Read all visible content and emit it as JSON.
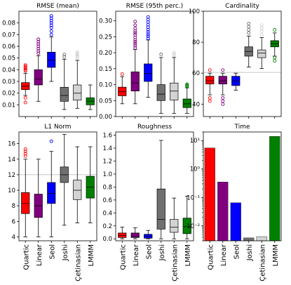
{
  "chart_data": [
    {
      "type": "box",
      "title": "RMSE (mean)",
      "ylim": [
        0,
        0.09
      ],
      "yscale": "linear",
      "yticks": [
        0.01,
        0.02,
        0.03,
        0.04,
        0.05,
        0.06,
        0.07,
        0.08
      ],
      "yticklabels": [
        "0.01",
        "0.02",
        "0.03",
        "0.04",
        "0.05",
        "0.06",
        "0.07",
        "0.08"
      ],
      "categories": [
        "Quartic",
        "Linear",
        "Seol",
        "Joshi",
        "Çetinasian",
        "LMMM"
      ],
      "show_xticklabels": false,
      "boxes": [
        {
          "min": 0.018,
          "q1": 0.023,
          "median": 0.026,
          "q3": 0.029,
          "max": 0.037,
          "outliers": [
            0.012,
            0.016,
            0.039,
            0.04,
            0.041,
            0.042,
            0.043,
            0.044
          ]
        },
        {
          "min": 0.013,
          "q1": 0.027,
          "median": 0.032,
          "q3": 0.04,
          "max": 0.052,
          "outliers": [
            0.054,
            0.056,
            0.058,
            0.06,
            0.062,
            0.064,
            0.066
          ]
        },
        {
          "min": 0.03,
          "q1": 0.042,
          "median": 0.048,
          "q3": 0.055,
          "max": 0.068,
          "outliers": [
            0.07,
            0.073,
            0.076,
            0.078,
            0.08,
            0.082,
            0.084,
            0.086
          ]
        },
        {
          "min": 0.006,
          "q1": 0.013,
          "median": 0.018,
          "q3": 0.025,
          "max": 0.049,
          "outliers": [
            0.051,
            0.053
          ]
        },
        {
          "min": 0.007,
          "q1": 0.014,
          "median": 0.02,
          "q3": 0.027,
          "max": 0.048,
          "outliers": [
            0.05,
            0.051,
            0.052,
            0.053,
            0.054,
            0.055
          ]
        },
        {
          "min": 0.006,
          "q1": 0.01,
          "median": 0.013,
          "q3": 0.016,
          "max": 0.027,
          "outliers": []
        }
      ]
    },
    {
      "type": "box",
      "title": "RMSE (95th perc.)",
      "ylim": [
        0,
        0.33
      ],
      "yscale": "linear",
      "yticks": [
        0.0,
        0.05,
        0.1,
        0.15,
        0.2,
        0.25,
        0.3
      ],
      "yticklabels": [
        "0.00",
        "0.05",
        "0.10",
        "0.15",
        "0.20",
        "0.25",
        "0.30"
      ],
      "categories": [
        "Quartic",
        "Linear",
        "Seol",
        "Joshi",
        "Çetinasian",
        "LMMM"
      ],
      "show_xticklabels": false,
      "boxes": [
        {
          "min": 0.04,
          "q1": 0.065,
          "median": 0.078,
          "q3": 0.092,
          "max": 0.125,
          "outliers": [
            0.133
          ]
        },
        {
          "min": 0.04,
          "q1": 0.08,
          "median": 0.105,
          "q3": 0.14,
          "max": 0.21,
          "outliers": [
            0.215,
            0.222,
            0.228,
            0.234,
            0.24,
            0.248,
            0.256,
            0.262,
            0.268,
            0.276,
            0.286,
            0.298
          ]
        },
        {
          "min": 0.06,
          "q1": 0.11,
          "median": 0.135,
          "q3": 0.165,
          "max": 0.24,
          "outliers": [
            0.245,
            0.252,
            0.258,
            0.265,
            0.272,
            0.28,
            0.288,
            0.296,
            0.304,
            0.312
          ]
        },
        {
          "min": 0.01,
          "q1": 0.05,
          "median": 0.07,
          "q3": 0.1,
          "max": 0.185,
          "outliers": [
            0.195
          ]
        },
        {
          "min": 0.01,
          "q1": 0.052,
          "median": 0.08,
          "q3": 0.105,
          "max": 0.185,
          "outliers": [
            0.192,
            0.196,
            0.2
          ]
        },
        {
          "min": 0.01,
          "q1": 0.028,
          "median": 0.04,
          "q3": 0.055,
          "max": 0.09,
          "outliers": [
            0.093,
            0.096,
            0.099,
            0.101
          ]
        }
      ]
    },
    {
      "type": "box",
      "title": "Cardinality",
      "ylim": [
        32,
        100
      ],
      "yscale": "linear",
      "yticks": [
        40,
        60,
        80,
        100
      ],
      "yticklabels": [
        "40",
        "60",
        "80",
        "100"
      ],
      "hline": 60.5,
      "categories": [
        "Quartic",
        "Linear",
        "Seol",
        "Joshi",
        "Çetinasian",
        "LMMM"
      ],
      "show_xticklabels": false,
      "boxes": [
        {
          "min": 46,
          "q1": 53,
          "median": 55,
          "q3": 58,
          "max": 60,
          "outliers": [
            42,
            44,
            62
          ]
        },
        {
          "min": 46,
          "q1": 53,
          "median": 55,
          "q3": 58,
          "max": 60,
          "outliers": [
            40,
            42,
            44,
            62
          ]
        },
        {
          "min": 49,
          "q1": 52,
          "median": 55,
          "q3": 58,
          "max": 60,
          "outliers": []
        },
        {
          "min": 64,
          "q1": 71,
          "median": 74,
          "q3": 77,
          "max": 84,
          "outliers": [
            86,
            88,
            90,
            92
          ]
        },
        {
          "min": 63,
          "q1": 70,
          "median": 73,
          "q3": 75,
          "max": 83,
          "outliers": [
            85,
            87,
            89,
            91
          ]
        },
        {
          "min": 71,
          "q1": 77,
          "median": 79,
          "q3": 81,
          "max": 86,
          "outliers": [
            68,
            70,
            88
          ]
        }
      ]
    },
    {
      "type": "box",
      "title": "L1 Norm",
      "ylim": [
        3.5,
        17.5
      ],
      "yscale": "linear",
      "yticks": [
        4,
        6,
        8,
        10,
        12,
        14,
        16
      ],
      "yticklabels": [
        "4",
        "6",
        "8",
        "10",
        "12",
        "14",
        "16"
      ],
      "hline": 12,
      "categories": [
        "Quartic",
        "Linear",
        "Seol",
        "Joshi",
        "Çetinasian",
        "LMMM"
      ],
      "show_xticklabels": true,
      "boxes": [
        {
          "min": 4.0,
          "q1": 7.0,
          "median": 8.3,
          "q3": 9.7,
          "max": 14.0,
          "outliers": [
            14.4,
            14.7,
            15.0,
            15.3
          ]
        },
        {
          "min": 4.0,
          "q1": 6.5,
          "median": 8.0,
          "q3": 9.5,
          "max": 14.0,
          "outliers": []
        },
        {
          "min": 4.0,
          "q1": 8.3,
          "median": 9.6,
          "q3": 11.0,
          "max": 15.0,
          "outliers": [
            16.3
          ]
        },
        {
          "min": 5.5,
          "q1": 11.0,
          "median": 12.0,
          "q3": 13.0,
          "max": 17.2,
          "outliers": []
        },
        {
          "min": 5.8,
          "q1": 8.8,
          "median": 10.0,
          "q3": 11.3,
          "max": 15.6,
          "outliers": []
        },
        {
          "min": 5.8,
          "q1": 9.0,
          "median": 10.4,
          "q3": 11.8,
          "max": 15.6,
          "outliers": []
        }
      ]
    },
    {
      "type": "box",
      "title": "Roughness",
      "ylim": [
        -0.03,
        1.65
      ],
      "yscale": "linear",
      "yticks": [
        0.0,
        0.2,
        0.4,
        0.6,
        0.8,
        1.0,
        1.2,
        1.4,
        1.6
      ],
      "yticklabels": [
        "0.0",
        "0.2",
        "0.4",
        "0.6",
        "0.8",
        "1.0",
        "1.2",
        "1.4",
        "1.6"
      ],
      "categories": [
        "Quartic",
        "Linear",
        "Seol",
        "Joshi",
        "Çetinasian",
        "LMMM"
      ],
      "show_xticklabels": true,
      "boxes": [
        {
          "min": 0.0,
          "q1": 0.02,
          "median": 0.05,
          "q3": 0.09,
          "max": 0.18,
          "outliers": []
        },
        {
          "min": 0.0,
          "q1": 0.02,
          "median": 0.04,
          "q3": 0.09,
          "max": 0.17,
          "outliers": []
        },
        {
          "min": 0.0,
          "q1": 0.01,
          "median": 0.04,
          "q3": 0.07,
          "max": 0.13,
          "outliers": []
        },
        {
          "min": 0.0,
          "q1": 0.15,
          "median": 0.3,
          "q3": 0.77,
          "max": 1.52,
          "outliers": []
        },
        {
          "min": 0.0,
          "q1": 0.1,
          "median": 0.18,
          "q3": 0.3,
          "max": 0.63,
          "outliers": []
        },
        {
          "min": 0.0,
          "q1": 0.08,
          "median": 0.19,
          "q3": 0.32,
          "max": 0.66,
          "outliers": []
        }
      ]
    },
    {
      "type": "bar",
      "title": "Time",
      "yscale": "log",
      "ylim": [
        0.003,
        20
      ],
      "yticks": [
        0.01,
        0.1,
        1,
        10
      ],
      "yticklabels": [
        "10⁻²",
        "10⁻¹",
        "10⁰",
        "10¹"
      ],
      "categories": [
        "Quartic",
        "Linear",
        "Seol",
        "Joshi",
        "Çetinasian",
        "LMMM"
      ],
      "show_xticklabels": true,
      "values": [
        5.5,
        0.35,
        0.065,
        0.0038,
        0.0042,
        14.0
      ]
    }
  ],
  "colors": [
    "#ff0000",
    "#800080",
    "#0000ff",
    "#707070",
    "#d3d3d3",
    "#008000"
  ]
}
